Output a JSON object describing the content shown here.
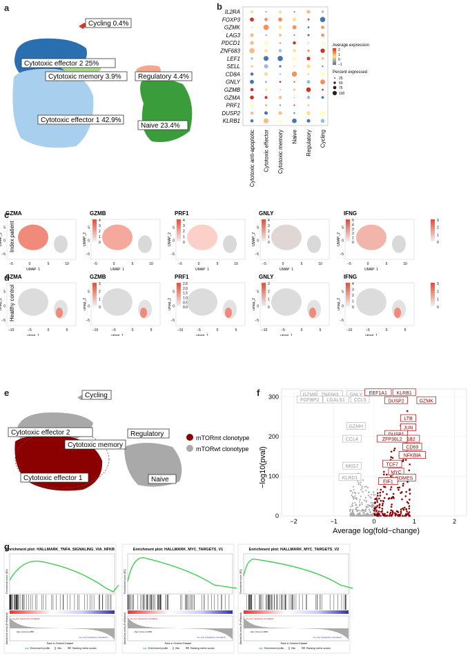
{
  "panel_labels": {
    "a": "a",
    "b": "b",
    "c": "c",
    "d": "d",
    "e": "e",
    "f": "f",
    "g": "g"
  },
  "panel_a": {
    "clusters": [
      {
        "label": "Cycling 0.4%",
        "color": "#d33b2c"
      },
      {
        "label": "Cytotoxic effector 2 25%",
        "color": "#2a6fb0"
      },
      {
        "label": "Cytotoxic memory 3.9%",
        "color": "#a8d88c"
      },
      {
        "label": "Regulatory 4.4%",
        "color": "#f4a78f"
      },
      {
        "label": "Cytotoxic effector 1 42.9%",
        "color": "#a9cfee"
      },
      {
        "label": "Naive 23.4%",
        "color": "#3a9c3a"
      }
    ]
  },
  "panel_b": {
    "genes": [
      "IL2RA",
      "FOXP3",
      "GZMK",
      "LAG3",
      "PDCD1",
      "ZNF683",
      "LEF1",
      "SELL",
      "CD8A",
      "GNLY",
      "GZMB",
      "GZMA",
      "PRF1",
      "DUSP2",
      "KLRB1"
    ],
    "clusters": [
      "Cytotoxic anti-apoptotic",
      "Cytotoxic effector",
      "Cytotoxic memory",
      "Naive",
      "Regulatory",
      "Cycling"
    ],
    "legend": {
      "avg_title": "Average expression",
      "avg_ticks": [
        "2",
        "1",
        "0",
        "−1"
      ],
      "pct_title": "Percent expressed",
      "pct_ticks": [
        "25",
        "50",
        "75",
        "100"
      ]
    }
  },
  "panel_c": {
    "row_label": "Index patient",
    "genes": [
      "GZMA",
      "GZMB",
      "PRF1",
      "GNLY",
      "IFNG"
    ],
    "xlabel": "UMAP_1",
    "ylabel": "UMAP_2",
    "xticks": [
      "−5",
      "0",
      "5",
      "10"
    ],
    "yticks": [
      "−5",
      "0",
      "5"
    ],
    "scales": [
      [
        "4",
        "3",
        "2",
        "1",
        "0"
      ],
      [
        "4",
        "3",
        "2",
        "1",
        "0"
      ],
      [
        "4",
        "3",
        "2",
        "1",
        "0"
      ],
      [
        "5",
        "4",
        "3",
        "2",
        "1",
        "0"
      ],
      [
        "3",
        "2",
        "1",
        "0"
      ]
    ]
  },
  "panel_d": {
    "row_label": "Healthy control",
    "genes": [
      "GZMA",
      "GZMB",
      "PRF1",
      "GNLY",
      "IFNG"
    ],
    "xlabel": "umap_1",
    "ylabel": "umap_2",
    "xticks": [
      "−10",
      "−5",
      "0",
      "5"
    ],
    "yticks": [
      "−5",
      "0",
      "5"
    ],
    "scales": [
      [
        "3",
        "2",
        "1",
        "0"
      ],
      [
        "2.5",
        "2.0",
        "1.5",
        "1.0",
        "0.5",
        "0.0"
      ],
      [
        "3",
        "2",
        "1",
        "0"
      ],
      [
        "4",
        "3",
        "2",
        "1",
        "0"
      ],
      [
        "3",
        "2",
        "1",
        "0"
      ]
    ]
  },
  "panel_e": {
    "labels": [
      "Cycling",
      "Cytotoxic effector 2",
      "Cytotoxic memory",
      "Regulatory",
      "Cytotoxic effector 1",
      "Naive"
    ],
    "legend": [
      {
        "label": "mTORmt clonotype",
        "color": "#8b0000"
      },
      {
        "label": "mTORwt clonotype",
        "color": "#a9a9a9"
      }
    ]
  },
  "panel_f": {
    "xlabel": "Average log(fold−change)",
    "ylabel": "−log10(pval)",
    "xticks": [
      "−2",
      "−1",
      "0",
      "1",
      "2"
    ],
    "yticks": [
      "0",
      "100",
      "200",
      "300"
    ],
    "xlim": [
      -2.3,
      2.3
    ],
    "ylim": [
      0,
      320
    ],
    "down_genes": [
      "GZMB",
      "ZNF683",
      "GNLY",
      "FGFBP2",
      "LGALS1",
      "CCL5",
      "GZMH",
      "CCL4",
      "NKG7",
      "KLRD1"
    ],
    "up_genes": [
      "EEF1A1",
      "KLRB1",
      "DUSP2",
      "GZMK",
      "LTB",
      "JUN",
      "DUSP1",
      "EEF1B2",
      "ZFP36L2",
      "CD69",
      "NFKBIA",
      "TCF7",
      "MYC",
      "EOMES",
      "EIF1"
    ]
  },
  "panel_g": {
    "plots": [
      {
        "title": "Enrichment plot: HALLMARK_TNFA_SIGNALING_VIA_NFKB"
      },
      {
        "title": "Enrichment plot: HALLMARK_MYC_TARGETS_V1"
      },
      {
        "title": "Enrichment plot: HALLMARK_MYC_TARGETS_V2"
      }
    ],
    "es_label": "Enrichment score (ES)",
    "rank_label": "Ranked list metric (PreRanked)",
    "x_label": "Rank in Ordered Dataset",
    "pos_label": "'na_pos' (positively correlated)",
    "neg_label": "'na_neg' (negatively correlated)",
    "zero_label": "Zero cross at 1999",
    "legend": [
      "Enrichment profile",
      "Hits",
      "Ranking metric scores"
    ]
  }
}
